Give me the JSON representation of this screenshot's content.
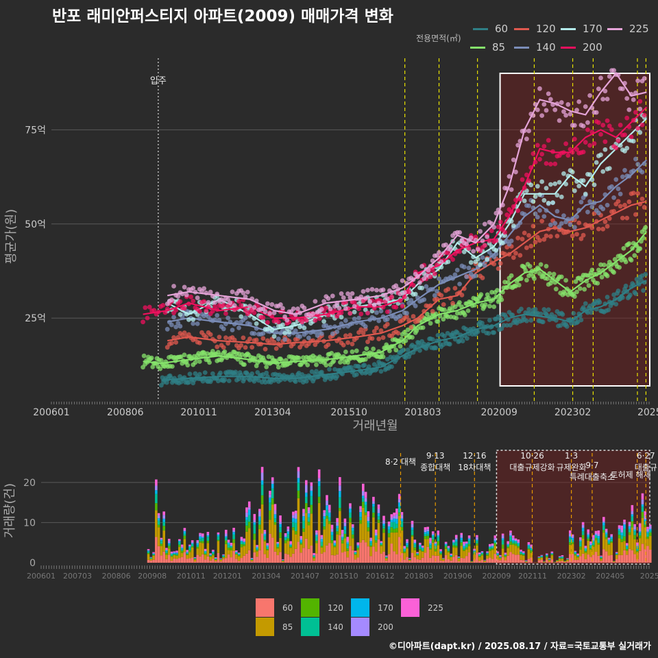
{
  "title": "반포 래미안퍼스티지 아파트(2009) 매매가격 변화",
  "legend_caption": "전용면적(㎡)",
  "footer": "©디아파트(dapt.kr) / 2025.08.17 / 자료=국토교통부 실거래가",
  "colors": {
    "60": "#2f7f86",
    "85": "#85e36b",
    "120": "#e0594f",
    "140": "#7b8db8",
    "170": "#b4ecec",
    "200": "#f0105e",
    "225": "#e5a4d8"
  },
  "bar_colors": {
    "60": "#f8766d",
    "85": "#c49a00",
    "120": "#53b400",
    "140": "#00c094",
    "170": "#00b6eb",
    "200": "#a58aff",
    "225": "#fb61d7"
  },
  "top_legend": [
    "60",
    "120",
    "170",
    "225",
    "85",
    "140",
    "200"
  ],
  "bottom_legend": [
    "60",
    "120",
    "170",
    "225",
    "85",
    "140",
    "200"
  ],
  "chart_data": [
    {
      "type": "line",
      "title": "반포 래미안퍼스티지 아파트(2009) 매매가격 변화",
      "xlabel": "거래년월",
      "ylabel": "평균가(원)",
      "x_ticks": [
        "200601",
        "200806",
        "201011",
        "201304",
        "201510",
        "201803",
        "202009",
        "202302",
        "2025"
      ],
      "y_ticks": [
        "25억",
        "50억",
        "75억"
      ],
      "ylim_eok": [
        3,
        94
      ],
      "xlim_year": [
        2006.0,
        2025.65
      ],
      "grid": true,
      "highlight_period": [
        "2020-09",
        "2025-08"
      ],
      "vlines_dotted": [
        {
          "x": 2009.5,
          "label": "입주"
        }
      ],
      "vlines_policy": [
        2017.58,
        2018.7,
        2019.96,
        2021.82,
        2023.08,
        2023.75,
        2025.2,
        2025.48
      ],
      "series": [
        {
          "name": "60",
          "points": [
            [
              2009.6,
              8.5
            ],
            [
              2010.5,
              9
            ],
            [
              2011.5,
              9.5
            ],
            [
              2012.5,
              9.5
            ],
            [
              2013.3,
              9
            ],
            [
              2014,
              9
            ],
            [
              2015,
              10
            ],
            [
              2016,
              11
            ],
            [
              2016.8,
              12
            ],
            [
              2017.5,
              15
            ],
            [
              2018,
              17
            ],
            [
              2018.7,
              19
            ],
            [
              2019.3,
              20
            ],
            [
              2019.9,
              22
            ],
            [
              2020.5,
              23
            ],
            [
              2021,
              25
            ],
            [
              2021.5,
              26
            ],
            [
              2022.5,
              25
            ],
            [
              2023,
              24
            ],
            [
              2023.5,
              27
            ],
            [
              2024,
              28
            ],
            [
              2024.5,
              30
            ],
            [
              2025,
              33
            ],
            [
              2025.5,
              35
            ]
          ]
        },
        {
          "name": "85",
          "points": [
            [
              2009.0,
              13.5
            ],
            [
              2009.6,
              13
            ],
            [
              2010.5,
              14
            ],
            [
              2011.5,
              15
            ],
            [
              2012.5,
              14
            ],
            [
              2013.3,
              13
            ],
            [
              2014,
              13.5
            ],
            [
              2015,
              14
            ],
            [
              2016,
              15
            ],
            [
              2016.8,
              16
            ],
            [
              2017.5,
              19
            ],
            [
              2018,
              23
            ],
            [
              2018.7,
              26
            ],
            [
              2019.3,
              27
            ],
            [
              2019.9,
              29
            ],
            [
              2020.5,
              30
            ],
            [
              2021,
              34
            ],
            [
              2021.5,
              37
            ],
            [
              2022,
              38
            ],
            [
              2022.5,
              35
            ],
            [
              2023,
              32
            ],
            [
              2023.5,
              35
            ],
            [
              2024,
              37
            ],
            [
              2024.5,
              40
            ],
            [
              2025,
              43
            ],
            [
              2025.5,
              48
            ]
          ]
        },
        {
          "name": "120",
          "points": [
            [
              2009.8,
              19
            ],
            [
              2010.5,
              20
            ],
            [
              2011.5,
              19
            ],
            [
              2012.5,
              18.5
            ],
            [
              2013.3,
              18
            ],
            [
              2014,
              18.5
            ],
            [
              2015,
              19
            ],
            [
              2016,
              20
            ],
            [
              2016.8,
              21
            ],
            [
              2017.5,
              23
            ],
            [
              2018,
              25
            ],
            [
              2018.7,
              30
            ],
            [
              2019.3,
              31
            ],
            [
              2019.9,
              37
            ],
            [
              2020.5,
              40
            ],
            [
              2021,
              42
            ],
            [
              2021.5,
              45
            ],
            [
              2022,
              48
            ],
            [
              2022.5,
              49
            ],
            [
              2023,
              48
            ],
            [
              2023.5,
              49
            ],
            [
              2024,
              51
            ],
            [
              2024.5,
              53
            ],
            [
              2025,
              55
            ],
            [
              2025.5,
              56
            ]
          ]
        },
        {
          "name": "140",
          "points": [
            [
              2009.8,
              24
            ],
            [
              2010.5,
              25
            ],
            [
              2011.5,
              24
            ],
            [
              2012.5,
              23
            ],
            [
              2013.3,
              21
            ],
            [
              2014,
              21
            ],
            [
              2015,
              22
            ],
            [
              2016,
              24
            ],
            [
              2016.8,
              25
            ],
            [
              2017.5,
              27
            ],
            [
              2018,
              30
            ],
            [
              2018.7,
              34
            ],
            [
              2019.3,
              36
            ],
            [
              2019.9,
              38
            ],
            [
              2020.5,
              42
            ],
            [
              2021,
              47
            ],
            [
              2021.5,
              52
            ],
            [
              2022,
              55
            ],
            [
              2022.5,
              52
            ],
            [
              2023,
              51
            ],
            [
              2023.5,
              55
            ],
            [
              2024,
              56
            ],
            [
              2024.5,
              60
            ],
            [
              2025,
              63
            ],
            [
              2025.5,
              67
            ]
          ]
        },
        {
          "name": "170",
          "points": [
            [
              2009.8,
              29
            ],
            [
              2010.5,
              26
            ],
            [
              2011.5,
              30
            ],
            [
              2012.5,
              26
            ],
            [
              2013.3,
              22
            ],
            [
              2014,
              23
            ],
            [
              2015,
              26
            ],
            [
              2016,
              28
            ],
            [
              2016.8,
              29
            ],
            [
              2017.5,
              30
            ],
            [
              2018,
              34
            ],
            [
              2018.7,
              38
            ],
            [
              2019.3,
              45
            ],
            [
              2019.9,
              41
            ],
            [
              2020.5,
              44
            ],
            [
              2021,
              50
            ],
            [
              2021.5,
              58
            ],
            [
              2022,
              58
            ],
            [
              2022.5,
              58
            ],
            [
              2023,
              63
            ],
            [
              2023.5,
              60
            ],
            [
              2024,
              66
            ],
            [
              2024.5,
              70
            ],
            [
              2025,
              74
            ],
            [
              2025.5,
              78
            ]
          ]
        },
        {
          "name": "200",
          "points": [
            [
              2009.0,
              26
            ],
            [
              2009.8,
              27
            ],
            [
              2010.5,
              29
            ],
            [
              2011.5,
              27
            ],
            [
              2012.5,
              28
            ],
            [
              2013.3,
              25
            ],
            [
              2014,
              25
            ],
            [
              2015,
              26
            ],
            [
              2016,
              28
            ],
            [
              2016.8,
              28
            ],
            [
              2017.5,
              30
            ],
            [
              2018,
              37
            ],
            [
              2018.7,
              39
            ],
            [
              2019.3,
              43
            ],
            [
              2019.9,
              45
            ],
            [
              2020.5,
              46
            ],
            [
              2021,
              52
            ],
            [
              2021.5,
              60
            ],
            [
              2022,
              70
            ],
            [
              2022.5,
              69
            ],
            [
              2023,
              69
            ],
            [
              2023.5,
              73
            ],
            [
              2024,
              75
            ],
            [
              2024.5,
              73
            ],
            [
              2025,
              77
            ],
            [
              2025.5,
              81
            ]
          ]
        },
        {
          "name": "225",
          "points": [
            [
              2009.8,
              31
            ],
            [
              2010.5,
              32
            ],
            [
              2011.5,
              31
            ],
            [
              2012.5,
              30
            ],
            [
              2013.3,
              27
            ],
            [
              2014,
              26
            ],
            [
              2015,
              29
            ],
            [
              2016,
              30
            ],
            [
              2016.8,
              31
            ],
            [
              2017.5,
              33
            ],
            [
              2018,
              36
            ],
            [
              2018.7,
              41
            ],
            [
              2019.3,
              47
            ],
            [
              2019.9,
              45
            ],
            [
              2020.5,
              50
            ],
            [
              2021,
              60
            ],
            [
              2021.5,
              75
            ],
            [
              2022,
              83
            ],
            [
              2022.5,
              82
            ],
            [
              2023,
              80
            ],
            [
              2023.5,
              79
            ],
            [
              2024,
              85
            ],
            [
              2024.5,
              90
            ],
            [
              2025,
              84
            ],
            [
              2025.5,
              85
            ]
          ]
        }
      ]
    },
    {
      "type": "bar",
      "ylabel": "거래량(건)",
      "x_ticks": [
        "200601",
        "200703",
        "200806",
        "200908",
        "201011",
        "201201",
        "201304",
        "201407",
        "201510",
        "201612",
        "201803",
        "201906",
        "202009",
        "202111",
        "202302",
        "202405",
        "2025"
      ],
      "y_ticks": [
        "0",
        "10",
        "20"
      ],
      "ylim": [
        0,
        28
      ],
      "stacked": true,
      "series_order": [
        "60",
        "85",
        "120",
        "140",
        "170",
        "200",
        "225"
      ],
      "policy_labels": [
        {
          "x": 2017.58,
          "lines": [
            "8·2 대책"
          ]
        },
        {
          "x": 2018.7,
          "lines": [
            "9·13",
            "종합대책"
          ]
        },
        {
          "x": 2019.96,
          "lines": [
            "12·16",
            "18차대책"
          ]
        },
        {
          "x": 2021.82,
          "lines": [
            "10·26",
            "대출규제강화"
          ]
        },
        {
          "x": 2023.08,
          "lines": [
            "1·3",
            "규제완화"
          ]
        },
        {
          "x": 2023.75,
          "lines": [
            "9·7",
            "특례대출축소"
          ]
        },
        {
          "x": 2025.2,
          "lines": [
            "토허제 해제"
          ]
        },
        {
          "x": 2025.48,
          "lines": [
            "6·27",
            "대출규"
          ]
        }
      ]
    }
  ]
}
